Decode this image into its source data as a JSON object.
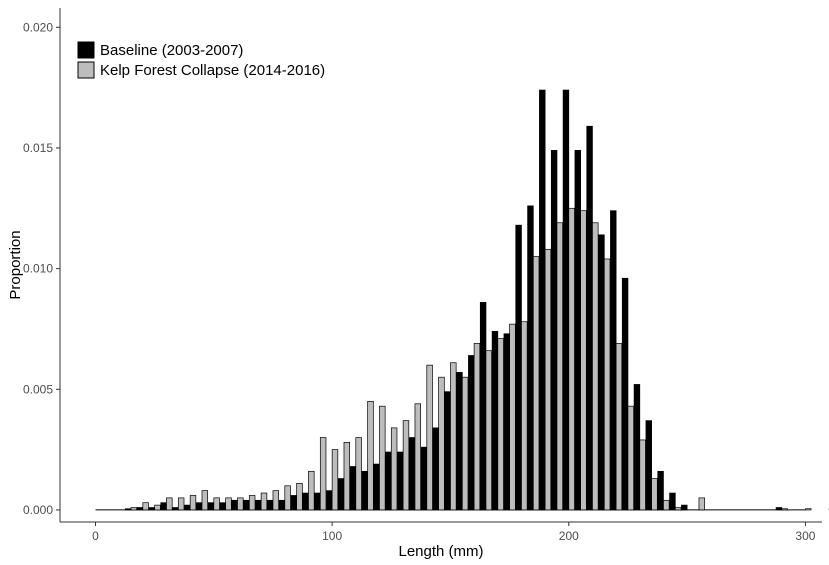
{
  "chart_data": {
    "type": "bar",
    "xlabel": "Length (mm)",
    "ylabel": "Proportion",
    "xlim": [
      -15,
      307
    ],
    "ylim": [
      -0.0005,
      0.0208
    ],
    "x_ticks": [
      0,
      100,
      200,
      300
    ],
    "y_ticks": [
      0.0,
      0.005,
      0.01,
      0.015,
      0.02
    ],
    "y_tick_labels": [
      "0.000",
      "0.005",
      "0.010",
      "0.015",
      "0.020"
    ],
    "bin_width": 5,
    "bin_start": 15,
    "grid": false,
    "legend_position": "top-left",
    "colors": {
      "baseline": "#000000",
      "collapse": "#bdbdbd",
      "outline": "#000000",
      "axis": "#333333"
    },
    "series": [
      {
        "name": "Baseline (2003-2007)",
        "values": [
          5e-05,
          0.0001,
          0.0001,
          0.0003,
          0.0001,
          0.0002,
          0.0003,
          0.0003,
          0.0003,
          0.0004,
          0.0004,
          0.0004,
          0.0004,
          0.0004,
          0.0006,
          0.0007,
          0.0007,
          0.0008,
          0.0013,
          0.0018,
          0.0016,
          0.0019,
          0.0024,
          0.0024,
          0.003,
          0.0026,
          0.0034,
          0.0049,
          0.0057,
          0.0064,
          0.0086,
          0.0074,
          0.0073,
          0.0118,
          0.0126,
          0.0174,
          0.0149,
          0.0174,
          0.0149,
          0.0159,
          0.0114,
          0.0124,
          0.0096,
          0.0052,
          0.0037,
          0.0016,
          0.0007,
          0.0002,
          0.0,
          0.0,
          0.0,
          0.0,
          0.0,
          0.0,
          0.0,
          0.0001,
          0.0,
          0.0,
          0.0,
          0.0,
          0.0,
          0.0,
          0.0,
          0.0
        ]
      },
      {
        "name": "Kelp Forest Collapse (2014-2016)",
        "values": [
          0.0001,
          0.0003,
          0.0002,
          0.0005,
          0.0005,
          0.0006,
          0.0008,
          0.0005,
          0.0005,
          0.0005,
          0.0006,
          0.0007,
          0.0008,
          0.001,
          0.0011,
          0.0016,
          0.003,
          0.0025,
          0.0028,
          0.003,
          0.0045,
          0.0043,
          0.0034,
          0.0037,
          0.0044,
          0.006,
          0.0055,
          0.0061,
          0.0055,
          0.0069,
          0.0066,
          0.0071,
          0.0077,
          0.0078,
          0.0105,
          0.0108,
          0.0119,
          0.0125,
          0.0124,
          0.0119,
          0.0104,
          0.0069,
          0.0043,
          0.0029,
          0.0013,
          0.0004,
          0.0001,
          0.0,
          0.0005,
          0.0,
          0.0,
          0.0,
          0.0,
          0.0,
          0.0,
          5e-05,
          0.0,
          5e-05,
          0.0,
          5e-05,
          0.0,
          5e-05,
          0.0,
          5e-05
        ]
      }
    ]
  }
}
